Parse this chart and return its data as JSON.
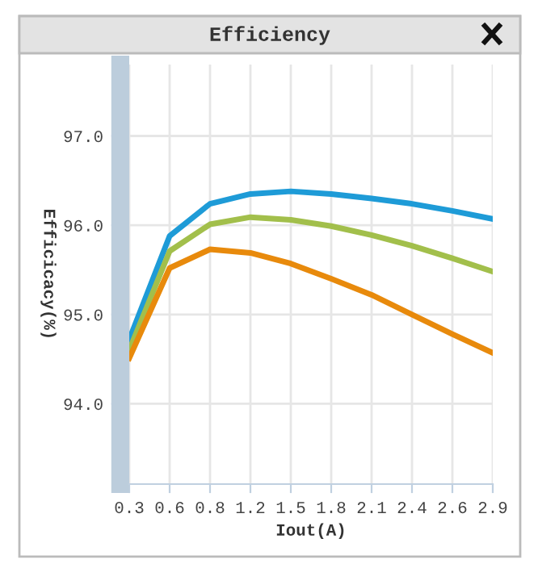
{
  "chart_data": {
    "type": "line",
    "title": "Efficiency",
    "xlabel": "Iout(A)",
    "ylabel": "Efficicacy(%)",
    "categories": [
      "0.3",
      "0.6",
      "0.8",
      "1.2",
      "1.5",
      "1.8",
      "2.1",
      "2.4",
      "2.6",
      "2.9"
    ],
    "series": [
      {
        "color": "#1e9bd7",
        "values": [
          94.72,
          95.88,
          96.24,
          96.35,
          96.38,
          96.35,
          96.3,
          96.24,
          96.16,
          96.07
        ]
      },
      {
        "color": "#a2bf4b",
        "values": [
          94.6,
          95.71,
          96.01,
          96.09,
          96.06,
          95.99,
          95.89,
          95.77,
          95.63,
          95.48
        ]
      },
      {
        "color": "#e88a0c",
        "values": [
          94.51,
          95.52,
          95.73,
          95.69,
          95.57,
          95.4,
          95.22,
          95.0,
          94.78,
          94.57
        ]
      }
    ],
    "ylim": [
      93.1,
      97.8
    ],
    "yticks": [
      {
        "value": 94,
        "label": "94.0"
      },
      {
        "value": 95,
        "label": "95.0"
      },
      {
        "value": 96,
        "label": "96.0"
      },
      {
        "value": 97,
        "label": "97.0"
      }
    ],
    "grid": true,
    "marker": "none",
    "line_style": "solid"
  }
}
